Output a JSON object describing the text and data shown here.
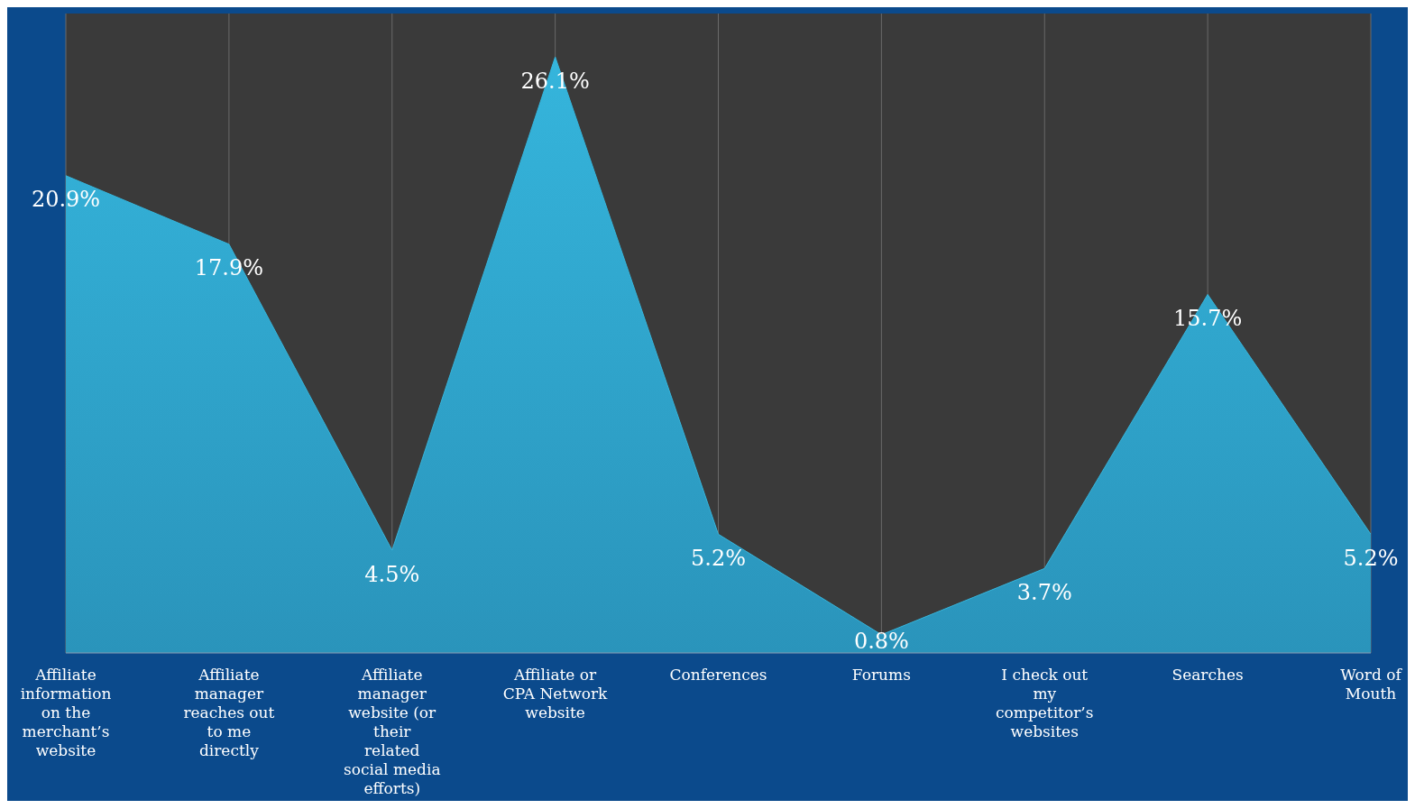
{
  "chart_data": {
    "type": "area",
    "categories": [
      "Affiliate information on the merchant’s website",
      "Affiliate manager reaches out to me directly",
      "Affiliate manager website (or their related social media efforts)",
      "Affiliate or CPA Network website",
      "Conferences",
      "Forums",
      "I check out my competitor’s websites",
      "Searches",
      "Word of Mouth"
    ],
    "values": [
      20.9,
      17.9,
      4.5,
      26.1,
      5.2,
      0.8,
      3.7,
      15.7,
      5.2
    ],
    "value_labels": [
      "20.9%",
      "17.9%",
      "4.5%",
      "26.1%",
      "5.2%",
      "0.8%",
      "3.7%",
      "15.7%",
      "5.2%"
    ],
    "color": "#35b5dc",
    "tick_labels": "x",
    "grid": "x"
  }
}
